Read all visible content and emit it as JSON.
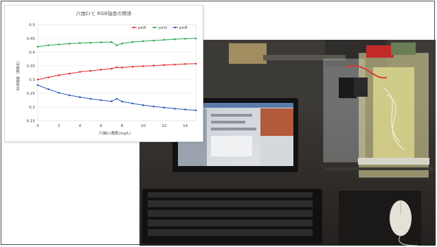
{
  "chart_data": {
    "type": "line",
    "title": "六価Crと RGB強度の関係",
    "xlabel": "六価Cr濃度(mg/L)",
    "ylabel": "RGB強度（規格化）",
    "xlim": [
      0,
      15
    ],
    "ylim": [
      0.15,
      0.5
    ],
    "xticks": [
      "0",
      "2",
      "4",
      "6",
      "8",
      "10",
      "12",
      "14"
    ],
    "yticks": [
      "0.15",
      "0.2",
      "0.25",
      "0.3",
      "0.35",
      "0.4",
      "0.45",
      "0.5"
    ],
    "legend_position": "top-right",
    "series": [
      {
        "name": "picR",
        "color": "#e8262d",
        "x": [
          0,
          1,
          2,
          3,
          4,
          5,
          6,
          7,
          7.5,
          8,
          9,
          10,
          11,
          12,
          13,
          14,
          15
        ],
        "values": [
          0.3,
          0.308,
          0.316,
          0.322,
          0.328,
          0.332,
          0.336,
          0.34,
          0.345,
          0.344,
          0.347,
          0.349,
          0.351,
          0.353,
          0.355,
          0.357,
          0.358
        ]
      },
      {
        "name": "picG",
        "color": "#27a84a",
        "x": [
          0,
          1,
          2,
          3,
          4,
          5,
          6,
          7,
          7.5,
          8,
          9,
          10,
          11,
          12,
          13,
          14,
          15
        ],
        "values": [
          0.42,
          0.425,
          0.428,
          0.431,
          0.433,
          0.434,
          0.436,
          0.437,
          0.425,
          0.432,
          0.437,
          0.44,
          0.442,
          0.445,
          0.447,
          0.449,
          0.45
        ]
      },
      {
        "name": "picB",
        "color": "#2b56b8",
        "x": [
          0,
          1,
          2,
          3,
          4,
          5,
          6,
          7,
          7.5,
          8,
          9,
          10,
          11,
          12,
          13,
          14,
          15
        ],
        "values": [
          0.28,
          0.265,
          0.252,
          0.243,
          0.236,
          0.23,
          0.225,
          0.221,
          0.23,
          0.22,
          0.213,
          0.207,
          0.202,
          0.198,
          0.194,
          0.191,
          0.188
        ]
      }
    ]
  }
}
